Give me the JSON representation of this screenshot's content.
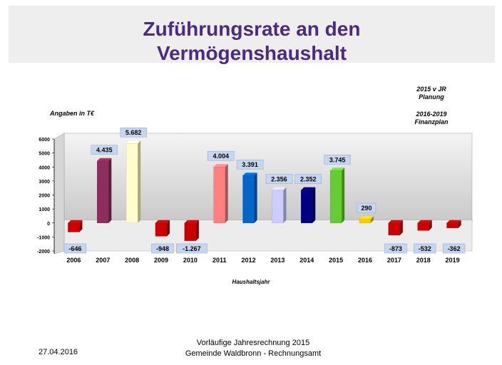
{
  "title": {
    "line1": "Zuführungsrate an den",
    "line2": "Vermögenshaushalt"
  },
  "notes": {
    "unit": "Angaben in T€",
    "planning_line1": "2015 v JR",
    "planning_line2": "Planung",
    "finance_line1": "2016-2019",
    "finance_line2": "Finanzplan"
  },
  "footer": {
    "date": "27.04.2016",
    "line1": "Vorläufige Jahresrechnung 2015",
    "line2": "Gemeinde Waldbronn - Rechnungsamt"
  },
  "chart_data": {
    "type": "bar",
    "categories": [
      "2006",
      "2007",
      "2008",
      "2009",
      "2010",
      "2011",
      "2012",
      "2013",
      "2014",
      "2015",
      "2016",
      "2017",
      "2018",
      "2019"
    ],
    "values": [
      -646,
      4435,
      5682,
      -948,
      -1267,
      4004,
      3391,
      2356,
      2352,
      3745,
      290,
      -873,
      -532,
      -362
    ],
    "value_labels": [
      "-646",
      "4.435",
      "5.682",
      "-948",
      "-1.267",
      "4.004",
      "3.391",
      "2.356",
      "2.352",
      "3.745",
      "290",
      "-873",
      "-532",
      "-362"
    ],
    "colors": [
      "#cc0000",
      "#8e2e5e",
      "#ffffcc",
      "#cc0000",
      "#cc0000",
      "#ff8080",
      "#0066cc",
      "#ccccff",
      "#000080",
      "#66cc33",
      "#ffcc00",
      "#cc0000",
      "#cc0000",
      "#cc0000"
    ],
    "xlabel": "Haushaltsjahr",
    "ylabel": "",
    "ylim": [
      -2000,
      6000
    ],
    "yticks": [
      6000,
      5000,
      4000,
      3000,
      2000,
      1000,
      0,
      -1000,
      -2000
    ],
    "grid": false
  }
}
